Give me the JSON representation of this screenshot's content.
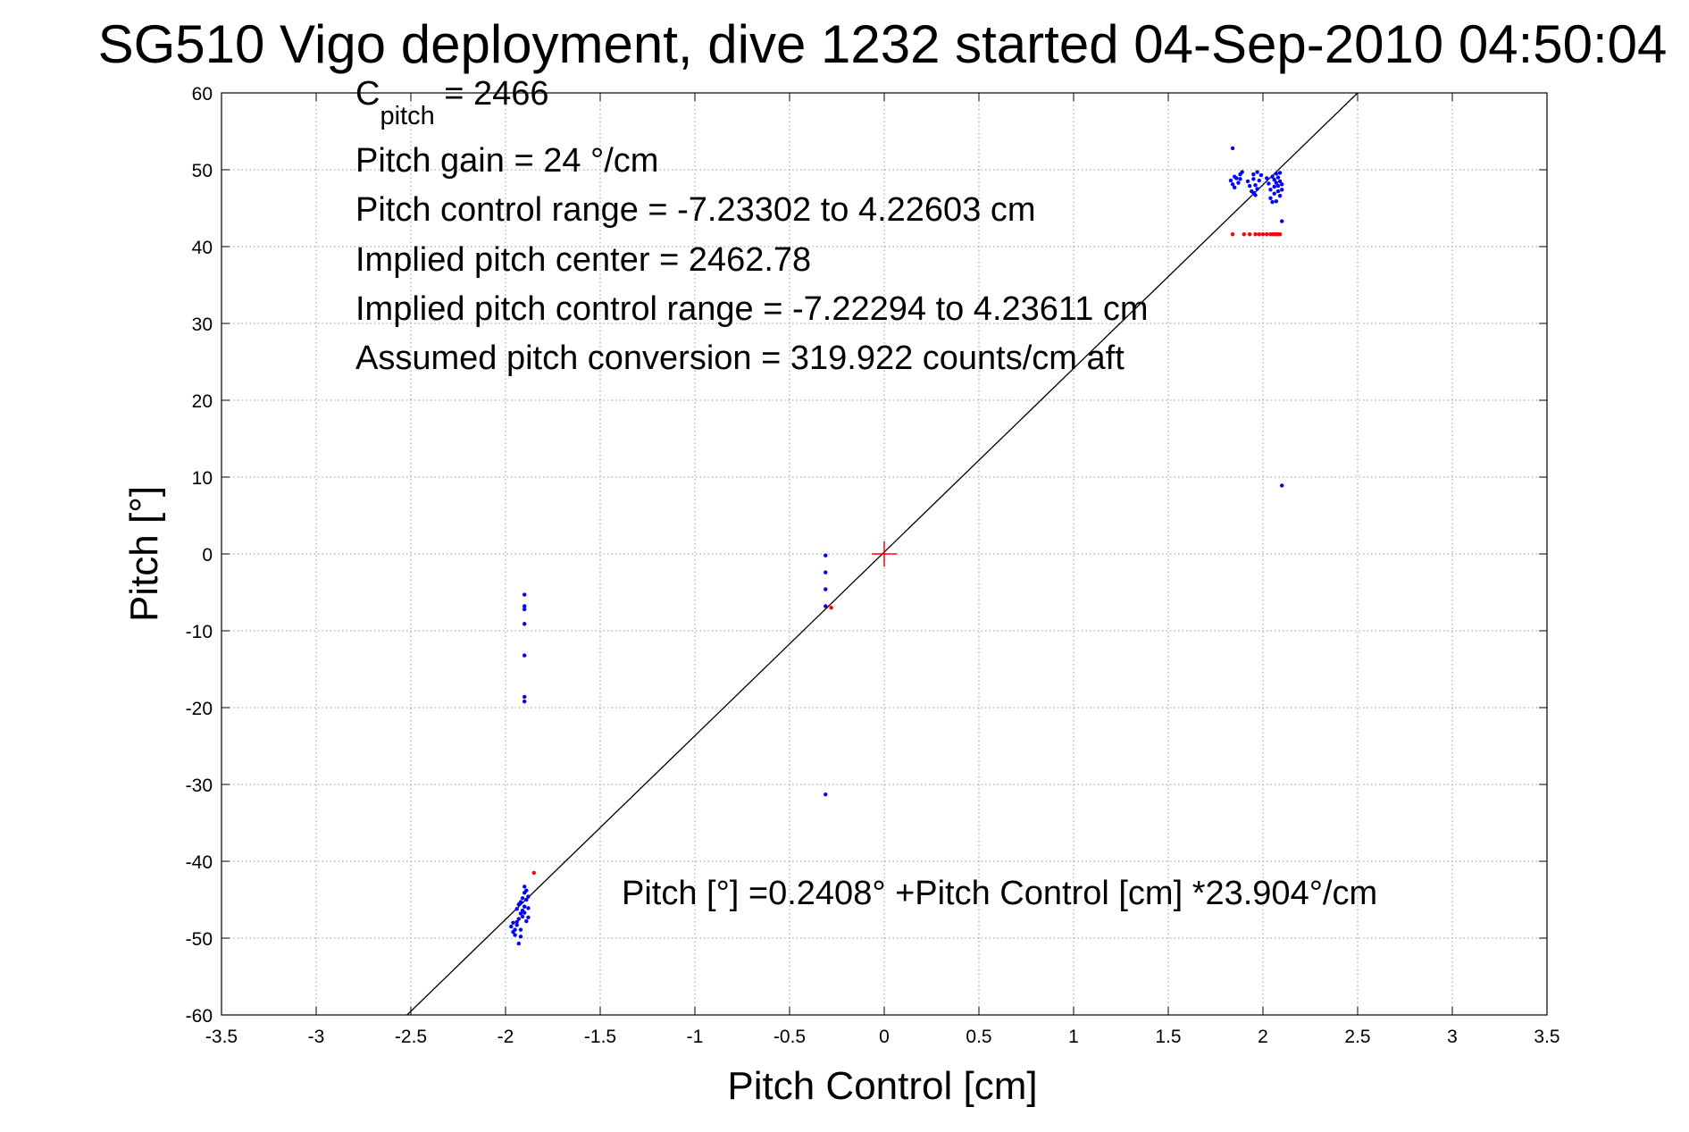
{
  "chart_data": {
    "type": "scatter",
    "title": "SG510 Vigo deployment, dive 1232 started 04-Sep-2010 04:50:04",
    "xlabel": "Pitch Control [cm]",
    "ylabel": "Pitch [°]",
    "xlim": [
      -3.5,
      3.5
    ],
    "ylim": [
      -60,
      60
    ],
    "xticks": [
      -3.5,
      -3,
      -2.5,
      -2,
      -1.5,
      -1,
      -0.5,
      0,
      0.5,
      1,
      1.5,
      2,
      2.5,
      3,
      3.5
    ],
    "xtick_labels": [
      "-3.5",
      "-3",
      "-2.5",
      "-2",
      "-1.5",
      "-1",
      "-0.5",
      "0",
      "0.5",
      "1",
      "1.5",
      "2",
      "2.5",
      "3",
      "3.5"
    ],
    "yticks": [
      -60,
      -50,
      -40,
      -30,
      -20,
      -10,
      0,
      10,
      20,
      30,
      40,
      50,
      60
    ],
    "ytick_labels": [
      "-60",
      "-50",
      "-40",
      "-30",
      "-20",
      "-10",
      "0",
      "10",
      "20",
      "30",
      "40",
      "50",
      "60"
    ],
    "grid": true,
    "annotations": {
      "c_pitch_main": "C",
      "c_pitch_sub": "pitch",
      "c_pitch_value": " = 2466",
      "lines": [
        "Pitch gain = 24 °/cm",
        "Pitch control range = -7.23302 to 4.22603 cm",
        "Implied pitch center = 2462.78",
        "Implied pitch control range = -7.22294 to 4.23611 cm",
        "Assumed pitch conversion = 319.922 counts/cm aft"
      ],
      "fit_equation": "Pitch [°] =0.2408° +Pitch Control [cm] *23.904°/cm"
    },
    "fit_line": {
      "intercept": 0.2408,
      "slope": 23.904,
      "color": "#000000"
    },
    "center_marker": {
      "x": 0,
      "y": 0,
      "color": "#ff0000"
    },
    "series": [
      {
        "color": "#0000ff",
        "points": [
          [
            1.84,
            52.8
          ],
          [
            1.83,
            48.6
          ],
          [
            1.84,
            48.1
          ],
          [
            1.85,
            47.7
          ],
          [
            1.86,
            48.9
          ],
          [
            1.87,
            48.3
          ],
          [
            1.88,
            49.4
          ],
          [
            1.89,
            49.7
          ],
          [
            1.88,
            48.8
          ],
          [
            1.85,
            49.1
          ],
          [
            1.92,
            48.5
          ],
          [
            1.93,
            47.9
          ],
          [
            1.94,
            47.2
          ],
          [
            1.95,
            48.8
          ],
          [
            1.95,
            49.4
          ],
          [
            1.96,
            48.0
          ],
          [
            1.97,
            47.5
          ],
          [
            1.96,
            46.7
          ],
          [
            1.98,
            48.6
          ],
          [
            1.99,
            49.3
          ],
          [
            1.97,
            49.7
          ],
          [
            1.95,
            47.0
          ],
          [
            2.02,
            48.9
          ],
          [
            2.03,
            48.2
          ],
          [
            2.04,
            47.4
          ],
          [
            2.04,
            46.3
          ],
          [
            2.05,
            45.8
          ],
          [
            2.05,
            49.1
          ],
          [
            2.06,
            48.7
          ],
          [
            2.06,
            47.8
          ],
          [
            2.06,
            46.9
          ],
          [
            2.07,
            49.5
          ],
          [
            2.07,
            48.3
          ],
          [
            2.07,
            45.9
          ],
          [
            2.08,
            49.0
          ],
          [
            2.08,
            47.9
          ],
          [
            2.08,
            47.2
          ],
          [
            2.09,
            48.5
          ],
          [
            2.09,
            49.6
          ],
          [
            2.09,
            46.6
          ],
          [
            2.1,
            48.1
          ],
          [
            2.1,
            47.4
          ],
          [
            2.1,
            43.3
          ],
          [
            2.1,
            8.9
          ],
          [
            -0.31,
            -0.2
          ],
          [
            -0.31,
            -2.4
          ],
          [
            -0.31,
            -4.6
          ],
          [
            -0.31,
            -6.8
          ],
          [
            -0.31,
            -31.3
          ],
          [
            -1.9,
            -5.3
          ],
          [
            -1.9,
            -6.8
          ],
          [
            -1.9,
            -7.2
          ],
          [
            -1.9,
            -9.1
          ],
          [
            -1.9,
            -13.2
          ],
          [
            -1.9,
            -18.6
          ],
          [
            -1.9,
            -19.2
          ],
          [
            -1.97,
            -48.5
          ],
          [
            -1.96,
            -49.2
          ],
          [
            -1.96,
            -48.0
          ],
          [
            -1.95,
            -48.9
          ],
          [
            -1.95,
            -49.6
          ],
          [
            -1.94,
            -47.9
          ],
          [
            -1.94,
            -46.2
          ],
          [
            -1.93,
            -50.7
          ],
          [
            -1.93,
            -47.5
          ],
          [
            -1.93,
            -45.6
          ],
          [
            -1.92,
            -46.8
          ],
          [
            -1.92,
            -45.3
          ],
          [
            -1.92,
            -49.8
          ],
          [
            -1.91,
            -46.4
          ],
          [
            -1.91,
            -44.8
          ],
          [
            -1.91,
            -47.2
          ],
          [
            -1.9,
            -45.9
          ],
          [
            -1.9,
            -44.1
          ],
          [
            -1.9,
            -43.3
          ],
          [
            -1.9,
            -46.7
          ],
          [
            -1.89,
            -45.0
          ],
          [
            -1.89,
            -47.8
          ],
          [
            -1.89,
            -43.8
          ],
          [
            -1.88,
            -44.6
          ],
          [
            -1.88,
            -46.1
          ],
          [
            -1.88,
            -47.3
          ],
          [
            -1.94,
            -48.3
          ],
          [
            -1.92,
            -48.9
          ]
        ]
      },
      {
        "color": "#ff0000",
        "points": [
          [
            1.84,
            41.6
          ],
          [
            1.9,
            41.6
          ],
          [
            1.93,
            41.6
          ],
          [
            1.96,
            41.6
          ],
          [
            1.98,
            41.6
          ],
          [
            2.0,
            41.6
          ],
          [
            2.02,
            41.6
          ],
          [
            2.04,
            41.6
          ],
          [
            2.05,
            41.6
          ],
          [
            2.06,
            41.6
          ],
          [
            2.07,
            41.6
          ],
          [
            2.08,
            41.6
          ],
          [
            2.09,
            41.6
          ],
          [
            -0.28,
            -7.0
          ],
          [
            -1.85,
            -41.5
          ]
        ]
      }
    ]
  }
}
